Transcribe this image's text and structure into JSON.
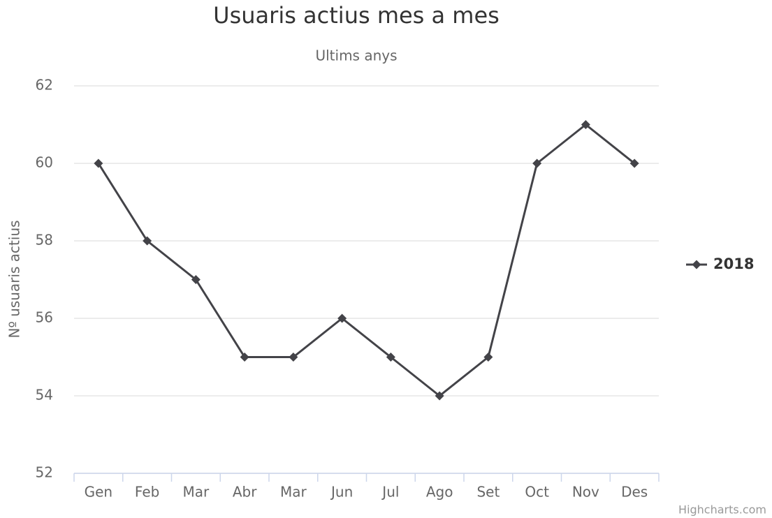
{
  "chart_data": {
    "type": "line",
    "title": "Usuaris actius mes a mes",
    "subtitle": "Ultims anys",
    "y_axis_label": "Nº usuaris actius",
    "categories": [
      "Gen",
      "Feb",
      "Mar",
      "Abr",
      "Mar",
      "Jun",
      "Jul",
      "Ago",
      "Set",
      "Oct",
      "Nov",
      "Des"
    ],
    "series": [
      {
        "name": "2018",
        "color": "#434348",
        "values": [
          60,
          58,
          57,
          55,
          55,
          56,
          55,
          54,
          55,
          60,
          61,
          60
        ]
      }
    ],
    "ylim": [
      52,
      62
    ],
    "yticks": [
      52,
      54,
      56,
      58,
      60,
      62
    ],
    "grid": true,
    "legend": "right",
    "credits": "Highcharts.com"
  }
}
